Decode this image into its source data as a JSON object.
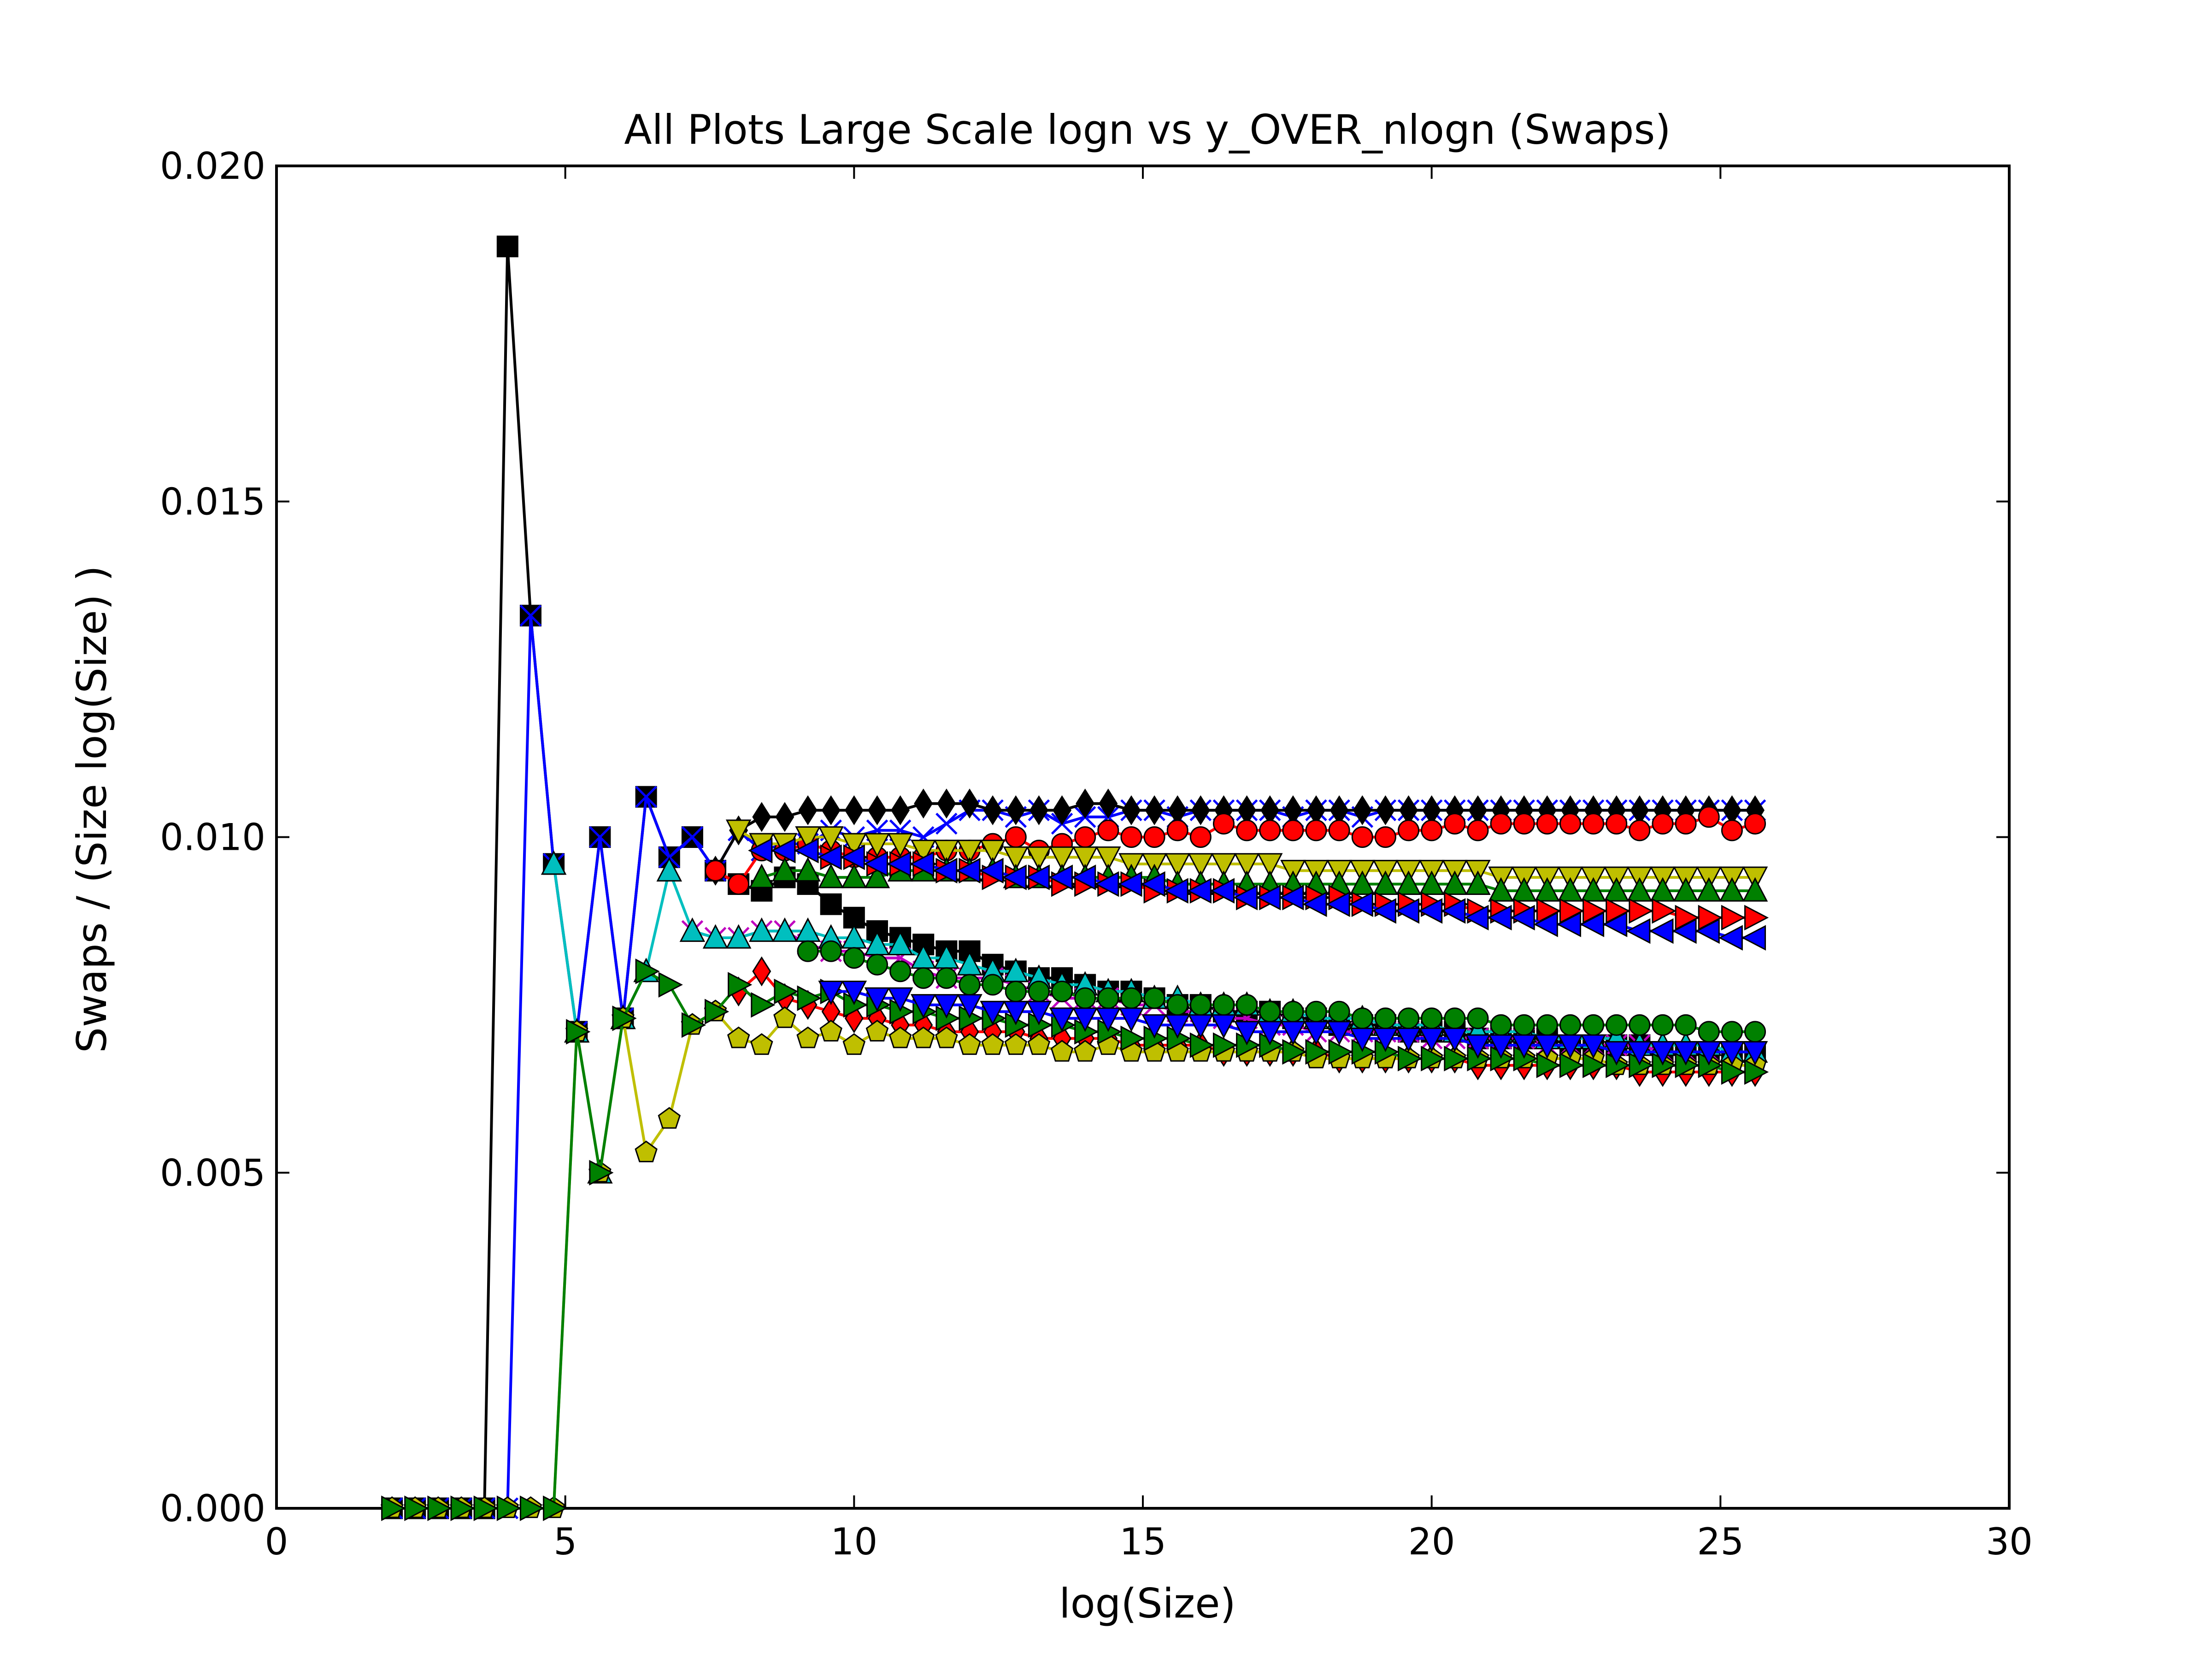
{
  "chart_data": {
    "type": "line",
    "title": "All Plots Large Scale logn vs y_OVER_nlogn (Swaps)",
    "xlabel": "log(Size)",
    "ylabel": "Swaps / (Size log(Size) )",
    "xlim": [
      0,
      30
    ],
    "ylim": [
      0,
      0.02
    ],
    "xticks": [
      0,
      5,
      10,
      15,
      20,
      25,
      30
    ],
    "xtick_labels": [
      "0",
      "5",
      "10",
      "15",
      "20",
      "25",
      "30"
    ],
    "yticks": [
      0,
      0.005,
      0.01,
      0.015,
      0.02
    ],
    "ytick_labels": [
      "0.000",
      "0.005",
      "0.010",
      "0.015",
      "0.020"
    ],
    "grid": false,
    "legend": "none",
    "x_start": 2.0,
    "x_step": 0.4,
    "series": [
      {
        "color": "#000000",
        "marker": "square",
        "values": [
          0.0,
          0.0,
          0.0,
          0.0,
          0.0,
          0.0188,
          0.0133,
          0.0096,
          0.0071,
          0.01,
          0.0073,
          0.0106,
          0.0097,
          0.01,
          0.0095,
          0.0093,
          0.0092,
          0.0094,
          0.0093,
          0.009,
          0.0088,
          0.0086,
          0.0085,
          0.0084,
          0.0083,
          0.0083,
          0.0081,
          0.008,
          0.0079,
          0.0079,
          0.0078,
          0.0077,
          0.0077,
          0.0076,
          0.0075,
          0.0075,
          0.0074,
          0.0074,
          0.0074,
          0.0073,
          0.0073,
          0.0072,
          0.0072,
          0.0072,
          0.0071,
          0.0071,
          0.0071,
          0.007,
          0.007,
          0.007,
          0.007,
          0.0069,
          0.0069,
          0.0069,
          0.0069,
          0.0068,
          0.0068,
          0.0068,
          0.0068,
          0.0068
        ]
      },
      {
        "color": "#0000ff",
        "marker": "x",
        "values": [
          0.0,
          0.0,
          0.0,
          0.0,
          0.0,
          0.0,
          0.0133,
          0.0096,
          0.0071,
          0.01,
          0.0073,
          0.0106,
          0.0097,
          0.01,
          0.0095,
          0.0101,
          0.0098,
          0.0099,
          0.0099,
          0.0101,
          0.01,
          0.0101,
          0.0101,
          0.01,
          0.0102,
          0.0104,
          0.0104,
          0.0103,
          0.0104,
          0.0102,
          0.0103,
          0.0103,
          0.0104,
          0.0104,
          0.0103,
          0.0104,
          0.0104,
          0.0104,
          0.0104,
          0.0103,
          0.0104,
          0.0104,
          0.0103,
          0.0104,
          0.0104,
          0.0104,
          0.0104,
          0.0104,
          0.0104,
          0.0104,
          0.0104,
          0.0104,
          0.0104,
          0.0104,
          0.0104,
          0.0104,
          0.0104,
          0.0104,
          0.0104,
          0.0104
        ]
      },
      {
        "color": "#000000",
        "marker": "diamond",
        "values": [
          null,
          null,
          null,
          null,
          null,
          null,
          null,
          null,
          null,
          null,
          null,
          null,
          null,
          null,
          0.0095,
          0.0101,
          0.0103,
          0.0103,
          0.0104,
          0.0104,
          0.0104,
          0.0104,
          0.0104,
          0.0105,
          0.0105,
          0.0105,
          0.0104,
          0.0104,
          0.0104,
          0.0104,
          0.0105,
          0.0105,
          0.0104,
          0.0104,
          0.0104,
          0.0104,
          0.0104,
          0.0104,
          0.0104,
          0.0104,
          0.0104,
          0.0104,
          0.0104,
          0.0104,
          0.0104,
          0.0104,
          0.0104,
          0.0104,
          0.0104,
          0.0104,
          0.0104,
          0.0104,
          0.0104,
          0.0104,
          0.0104,
          0.0104,
          0.0104,
          0.0104,
          0.0104,
          0.0104
        ]
      },
      {
        "color": "#ff0000",
        "marker": "circle",
        "values": [
          null,
          null,
          null,
          null,
          null,
          null,
          null,
          null,
          null,
          null,
          null,
          null,
          null,
          null,
          0.0095,
          0.0093,
          0.0098,
          0.0098,
          0.0099,
          0.0098,
          0.0097,
          0.0097,
          0.0097,
          0.0097,
          0.0098,
          0.0098,
          0.0099,
          0.01,
          0.0098,
          0.0099,
          0.01,
          0.0101,
          0.01,
          0.01,
          0.0101,
          0.01,
          0.0102,
          0.0101,
          0.0101,
          0.0101,
          0.0101,
          0.0101,
          0.01,
          0.01,
          0.0101,
          0.0101,
          0.0102,
          0.0101,
          0.0102,
          0.0102,
          0.0102,
          0.0102,
          0.0102,
          0.0102,
          0.0101,
          0.0102,
          0.0102,
          0.0103,
          0.0101,
          0.0102
        ]
      },
      {
        "color": "#bfbf00",
        "marker": "triangle-down",
        "values": [
          null,
          null,
          null,
          null,
          null,
          null,
          null,
          null,
          null,
          null,
          null,
          null,
          null,
          null,
          null,
          0.0101,
          0.0099,
          0.0099,
          0.01,
          0.01,
          0.0099,
          0.0099,
          0.0099,
          0.0098,
          0.0098,
          0.0098,
          0.0098,
          0.0097,
          0.0097,
          0.0097,
          0.0097,
          0.0097,
          0.0096,
          0.0096,
          0.0096,
          0.0096,
          0.0096,
          0.0096,
          0.0096,
          0.0095,
          0.0095,
          0.0095,
          0.0095,
          0.0095,
          0.0095,
          0.0095,
          0.0095,
          0.0095,
          0.0094,
          0.0094,
          0.0094,
          0.0094,
          0.0094,
          0.0094,
          0.0094,
          0.0094,
          0.0094,
          0.0094,
          0.0094,
          0.0094
        ]
      },
      {
        "color": "#008000",
        "marker": "triangle-up",
        "values": [
          null,
          null,
          null,
          null,
          null,
          null,
          null,
          null,
          null,
          null,
          null,
          null,
          null,
          null,
          null,
          null,
          0.0094,
          0.0095,
          0.0095,
          0.0094,
          0.0094,
          0.0094,
          0.0095,
          0.0095,
          0.0095,
          0.0095,
          0.0095,
          0.0094,
          0.0094,
          0.0094,
          0.0094,
          0.0094,
          0.0094,
          0.0094,
          0.0093,
          0.0093,
          0.0093,
          0.0093,
          0.0093,
          0.0093,
          0.0093,
          0.0093,
          0.0093,
          0.0093,
          0.0093,
          0.0093,
          0.0093,
          0.0093,
          0.0092,
          0.0092,
          0.0092,
          0.0092,
          0.0092,
          0.0092,
          0.0092,
          0.0092,
          0.0092,
          0.0092,
          0.0092,
          0.0092
        ]
      },
      {
        "color": "#ff0000",
        "marker": "triangle-right",
        "values": [
          null,
          null,
          null,
          null,
          null,
          null,
          null,
          null,
          null,
          null,
          null,
          null,
          null,
          null,
          null,
          null,
          null,
          null,
          null,
          0.0097,
          0.0097,
          0.0096,
          0.0096,
          0.0096,
          0.0095,
          0.0095,
          0.0094,
          0.0094,
          0.0094,
          0.0093,
          0.0093,
          0.0093,
          0.0093,
          0.0092,
          0.0092,
          0.0092,
          0.0092,
          0.0091,
          0.0091,
          0.0091,
          0.0091,
          0.0091,
          0.009,
          0.009,
          0.009,
          0.009,
          0.009,
          0.0089,
          0.0089,
          0.0089,
          0.0089,
          0.0089,
          0.0089,
          0.0089,
          0.0089,
          0.0089,
          0.0088,
          0.0088,
          0.0088,
          0.0088
        ]
      },
      {
        "color": "#0000ff",
        "marker": "triangle-left",
        "values": [
          null,
          null,
          null,
          null,
          null,
          null,
          null,
          null,
          null,
          null,
          null,
          null,
          null,
          null,
          null,
          null,
          0.0098,
          0.0098,
          0.0098,
          0.0097,
          0.0097,
          0.0096,
          0.0096,
          0.0096,
          0.0095,
          0.0095,
          0.0095,
          0.0094,
          0.0094,
          0.0094,
          0.0094,
          0.0093,
          0.0093,
          0.0093,
          0.0092,
          0.0092,
          0.0092,
          0.0091,
          0.0091,
          0.0091,
          0.009,
          0.009,
          0.009,
          0.0089,
          0.0089,
          0.0089,
          0.0089,
          0.0088,
          0.0088,
          0.0088,
          0.0087,
          0.0087,
          0.0087,
          0.0087,
          0.0086,
          0.0086,
          0.0086,
          0.0086,
          0.0085,
          0.0085
        ]
      },
      {
        "color": "#bf00bf",
        "marker": "x",
        "values": [
          null,
          null,
          null,
          null,
          null,
          null,
          null,
          null,
          null,
          null,
          null,
          null,
          null,
          0.0086,
          0.0085,
          0.0085,
          0.0086,
          0.0086,
          0.0084,
          0.0083,
          0.0083,
          0.0082,
          0.0082,
          0.008,
          0.0079,
          0.0079,
          0.0079,
          0.0078,
          0.0077,
          0.0076,
          0.0076,
          0.0076,
          0.0075,
          0.0075,
          0.0074,
          0.0074,
          0.0073,
          0.0073,
          0.0072,
          0.0072,
          0.0071,
          0.0071,
          0.0071,
          0.0071,
          0.0071,
          0.007,
          0.007,
          0.007,
          0.007,
          0.007,
          0.0069,
          0.0069,
          0.0069,
          0.0069,
          0.0069,
          0.0068,
          0.0068,
          0.0068,
          0.0068,
          0.0068
        ]
      },
      {
        "color": "#00bfbf",
        "marker": "triangle-up",
        "values": [
          null,
          null,
          null,
          null,
          null,
          null,
          null,
          0.0096,
          0.0071,
          0.005,
          0.0073,
          0.008,
          0.0095,
          0.0086,
          0.0085,
          0.0085,
          0.0086,
          0.0086,
          0.0086,
          0.0085,
          0.0085,
          0.0084,
          0.0084,
          0.0082,
          0.0082,
          0.0081,
          0.008,
          0.008,
          0.0079,
          0.0078,
          0.0078,
          0.0077,
          0.0077,
          0.0076,
          0.0076,
          0.0075,
          0.0075,
          0.0075,
          0.0074,
          0.0074,
          0.0073,
          0.0073,
          0.0073,
          0.0072,
          0.0072,
          0.0072,
          0.0071,
          0.0071,
          0.0071,
          0.0071,
          0.007,
          0.007,
          0.007,
          0.007,
          0.0069,
          0.0069,
          0.0069,
          0.0069,
          0.0068,
          0.0068
        ]
      },
      {
        "color": "#008000",
        "marker": "circle",
        "values": [
          null,
          null,
          null,
          null,
          null,
          null,
          null,
          null,
          null,
          null,
          null,
          null,
          null,
          null,
          null,
          null,
          null,
          null,
          0.0083,
          0.0083,
          0.0082,
          0.0081,
          0.008,
          0.0079,
          0.0079,
          0.0078,
          0.0078,
          0.0077,
          0.0077,
          0.0077,
          0.0076,
          0.0076,
          0.0076,
          0.0076,
          0.0075,
          0.0075,
          0.0075,
          0.0075,
          0.0074,
          0.0074,
          0.0074,
          0.0074,
          0.0073,
          0.0073,
          0.0073,
          0.0073,
          0.0073,
          0.0073,
          0.0072,
          0.0072,
          0.0072,
          0.0072,
          0.0072,
          0.0072,
          0.0072,
          0.0072,
          0.0072,
          0.0071,
          0.0071,
          0.0071
        ]
      },
      {
        "color": "#ff0000",
        "marker": "diamond",
        "values": [
          null,
          null,
          null,
          null,
          null,
          null,
          null,
          null,
          null,
          null,
          null,
          null,
          null,
          null,
          null,
          0.0077,
          0.008,
          0.0076,
          0.0075,
          0.0074,
          0.0073,
          0.0073,
          0.0072,
          0.0072,
          0.0071,
          0.0071,
          0.0071,
          0.0071,
          0.007,
          0.007,
          0.007,
          0.007,
          0.0069,
          0.0069,
          0.0069,
          0.0069,
          0.0068,
          0.0068,
          0.0068,
          0.0068,
          0.0068,
          0.0067,
          0.0067,
          0.0067,
          0.0067,
          0.0067,
          0.0067,
          0.0066,
          0.0066,
          0.0066,
          0.0066,
          0.0066,
          0.0066,
          0.0066,
          0.0065,
          0.0065,
          0.0065,
          0.0065,
          0.0065,
          0.0065
        ]
      },
      {
        "color": "#bfbf00",
        "marker": "pentagon",
        "values": [
          0.0,
          0.0,
          0.0,
          0.0,
          0.0,
          0.0,
          0.0,
          0.0,
          0.0071,
          0.005,
          0.0073,
          0.0053,
          0.0058,
          0.0072,
          0.0074,
          0.007,
          0.0069,
          0.0073,
          0.007,
          0.0071,
          0.0069,
          0.0071,
          0.007,
          0.007,
          0.007,
          0.0069,
          0.0069,
          0.0069,
          0.0069,
          0.0068,
          0.0068,
          0.0069,
          0.0068,
          0.0068,
          0.0068,
          0.0068,
          0.0068,
          0.0068,
          0.0068,
          0.0068,
          0.0067,
          0.0067,
          0.0067,
          0.0067,
          0.0067,
          0.0067,
          0.0067,
          0.0067,
          0.0067,
          0.0067,
          0.0067,
          0.0067,
          0.0067,
          0.0066,
          0.0066,
          0.0066,
          0.0066,
          0.0066,
          0.0066,
          0.0066
        ]
      },
      {
        "color": "#008000",
        "marker": "triangle-right",
        "values": [
          0.0,
          0.0,
          0.0,
          0.0,
          0.0,
          0.0,
          0.0,
          0.0,
          0.0071,
          0.005,
          0.0073,
          0.008,
          0.0078,
          0.0072,
          0.0074,
          0.0078,
          0.0075,
          0.0077,
          0.0076,
          0.0077,
          0.0075,
          0.0075,
          0.0074,
          0.0074,
          0.0073,
          0.0073,
          0.0073,
          0.0072,
          0.0072,
          0.0072,
          0.0071,
          0.0071,
          0.007,
          0.007,
          0.007,
          0.0069,
          0.0069,
          0.0069,
          0.0069,
          0.0068,
          0.0068,
          0.0068,
          0.0068,
          0.0068,
          0.0067,
          0.0067,
          0.0067,
          0.0067,
          0.0067,
          0.0067,
          0.0066,
          0.0066,
          0.0066,
          0.0066,
          0.0066,
          0.0066,
          0.0066,
          0.0066,
          0.0065,
          0.0065
        ]
      },
      {
        "color": "#0000ff",
        "marker": "triangle-down",
        "values": [
          null,
          null,
          null,
          null,
          null,
          null,
          null,
          null,
          null,
          null,
          null,
          null,
          null,
          null,
          null,
          null,
          null,
          null,
          null,
          0.0077,
          0.0077,
          0.0076,
          0.0076,
          0.0075,
          0.0075,
          0.0075,
          0.0074,
          0.0074,
          0.0074,
          0.0073,
          0.0073,
          0.0073,
          0.0073,
          0.0072,
          0.0072,
          0.0072,
          0.0072,
          0.0071,
          0.0071,
          0.0071,
          0.0071,
          0.0071,
          0.007,
          0.007,
          0.007,
          0.007,
          0.007,
          0.0069,
          0.0069,
          0.0069,
          0.0069,
          0.0069,
          0.0069,
          0.0068,
          0.0068,
          0.0068,
          0.0068,
          0.0068,
          0.0068,
          0.0068
        ]
      }
    ]
  }
}
